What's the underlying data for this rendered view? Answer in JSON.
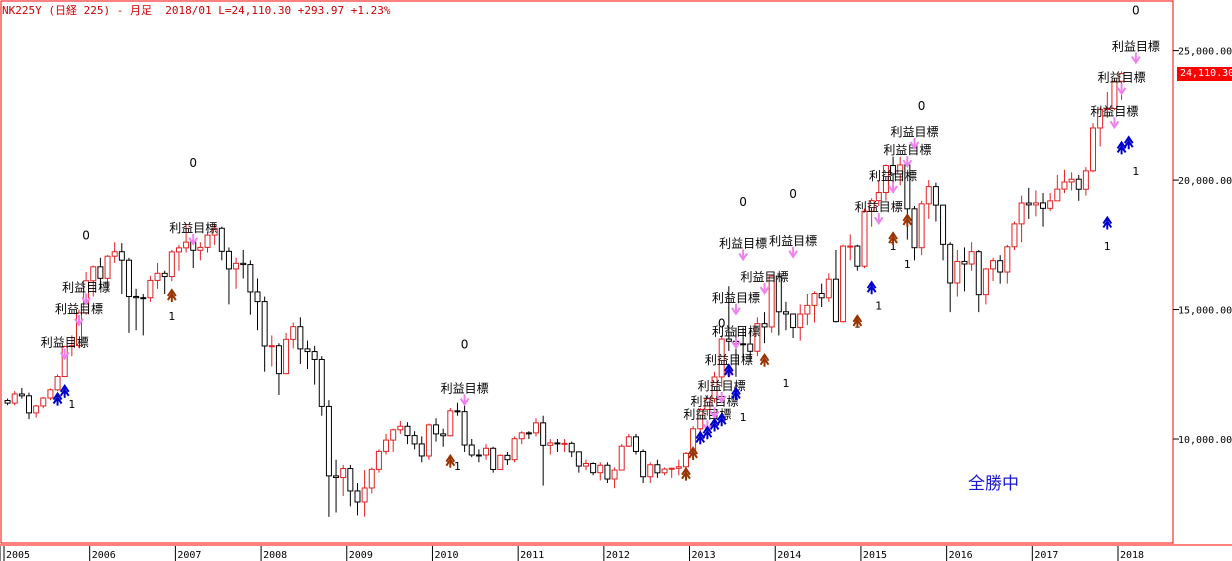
{
  "header": {
    "symbol": "NK225Y",
    "name": "(日経 225)",
    "period": "- 月足",
    "date": "2018/01",
    "last": "L=24,110.30",
    "change": "+293.97",
    "change_pct": "+1.23%"
  },
  "last_price_label": "24,110.30",
  "status_text": "全勝中",
  "colors": {
    "up": "#e02020",
    "down": "#000000",
    "frame": "#ff0000",
    "target": "#ee82ee",
    "buy_arrow": "#0000cc",
    "brown_arrow": "#993300"
  },
  "chart_data": {
    "type": "candlestick",
    "y_axis": {
      "ticks": [
        10000,
        15000,
        20000,
        25000
      ],
      "tick_labels": [
        "10,000.00",
        "15,000.00",
        "20,000.00",
        "25,000.00"
      ],
      "ylim": [
        6100,
        26800
      ]
    },
    "x_axis": {
      "ticks": [
        "2005",
        "2006",
        "2007",
        "2008",
        "2009",
        "2010",
        "2011",
        "2012",
        "2013",
        "2014",
        "2015",
        "2016",
        "2017",
        "2018"
      ]
    },
    "start": "2005-01",
    "candles": [
      [
        11488,
        11387,
        11562,
        11305
      ],
      [
        11387,
        11740,
        11851,
        11300
      ],
      [
        11740,
        11668,
        11975,
        11560
      ],
      [
        11668,
        11009,
        11790,
        10770
      ],
      [
        11009,
        11277,
        11320,
        10825
      ],
      [
        11277,
        11584,
        11625,
        11187
      ],
      [
        11584,
        11900,
        11950,
        11500
      ],
      [
        11900,
        12413,
        12500,
        11850
      ],
      [
        12413,
        13574,
        13600,
        12400
      ],
      [
        13574,
        13607,
        14000,
        13200
      ],
      [
        13607,
        14872,
        15000,
        13500
      ],
      [
        14872,
        16111,
        16450,
        14800
      ],
      [
        16111,
        16650,
        16700,
        15500
      ],
      [
        16650,
        16206,
        17000,
        15800
      ],
      [
        16206,
        17060,
        17100,
        15700
      ],
      [
        17060,
        17233,
        17600,
        16800
      ],
      [
        17233,
        16906,
        17563,
        15600
      ],
      [
        16906,
        15505,
        17000,
        14100
      ],
      [
        15505,
        15458,
        15800,
        14200
      ],
      [
        15458,
        15457,
        15600,
        14000
      ],
      [
        15457,
        16125,
        16300,
        15300
      ],
      [
        16125,
        16399,
        16800,
        15800
      ],
      [
        16399,
        16274,
        16500,
        15600
      ],
      [
        16274,
        17226,
        17300,
        16100
      ],
      [
        17226,
        17383,
        17500,
        16500
      ],
      [
        17383,
        17604,
        18300,
        17200
      ],
      [
        17604,
        17288,
        17700,
        16600
      ],
      [
        17288,
        17400,
        17600,
        16900
      ],
      [
        17400,
        17876,
        18000,
        17200
      ],
      [
        17876,
        18138,
        18300,
        17500
      ],
      [
        18138,
        17248,
        18200,
        16900
      ],
      [
        17248,
        16569,
        17400,
        15200
      ],
      [
        16569,
        16785,
        17000,
        15800
      ],
      [
        16785,
        16737,
        17300,
        16200
      ],
      [
        16737,
        15680,
        16900,
        14800
      ],
      [
        15680,
        15307,
        16200,
        14200
      ],
      [
        15307,
        13592,
        15500,
        12600
      ],
      [
        13592,
        13603,
        14000,
        12800
      ],
      [
        13603,
        12525,
        13700,
        11700
      ],
      [
        12525,
        13850,
        14100,
        12500
      ],
      [
        13850,
        14338,
        14500,
        13500
      ],
      [
        14338,
        13481,
        14700,
        12900
      ],
      [
        13481,
        13377,
        13800,
        12700
      ],
      [
        13377,
        13072,
        13600,
        12100
      ],
      [
        13072,
        11259,
        13200,
        10900
      ],
      [
        11259,
        8576,
        11500,
        6994
      ],
      [
        8576,
        8512,
        9200,
        7162
      ],
      [
        8512,
        8859,
        9000,
        7800
      ],
      [
        8859,
        7994,
        9000,
        7400
      ],
      [
        7994,
        7568,
        8300,
        7050
      ],
      [
        7568,
        8109,
        8800,
        7000
      ],
      [
        8109,
        8828,
        8900,
        7900
      ],
      [
        8828,
        9522,
        9600,
        8700
      ],
      [
        9522,
        9958,
        10200,
        9400
      ],
      [
        9958,
        10356,
        10400,
        9500
      ],
      [
        10356,
        10492,
        10700,
        10200
      ],
      [
        10492,
        10133,
        10650,
        9800
      ],
      [
        10133,
        9810,
        10300,
        9600
      ],
      [
        9810,
        9345,
        10100,
        9100
      ],
      [
        9345,
        10546,
        10600,
        9200
      ],
      [
        10546,
        10198,
        10800,
        9900
      ],
      [
        10198,
        10126,
        10400,
        9700
      ],
      [
        10126,
        11089,
        11200,
        10100
      ],
      [
        11089,
        11057,
        11400,
        10900
      ],
      [
        11057,
        9768,
        11300,
        9500
      ],
      [
        9768,
        9383,
        10000,
        9300
      ],
      [
        9383,
        9382,
        9600,
        9100
      ],
      [
        9382,
        9642,
        9800,
        9200
      ],
      [
        9642,
        8824,
        9700,
        8700
      ],
      [
        8824,
        9369,
        9400,
        8800
      ],
      [
        9369,
        9202,
        9500,
        9000
      ],
      [
        9202,
        10011,
        10100,
        9100
      ],
      [
        10011,
        10238,
        10300,
        9800
      ],
      [
        10238,
        10237,
        10300,
        10000
      ],
      [
        10237,
        10624,
        10800,
        10100
      ],
      [
        10624,
        9755,
        10900,
        8200
      ],
      [
        9755,
        9849,
        10000,
        9400
      ],
      [
        9849,
        9816,
        10000,
        9500
      ],
      [
        9816,
        9833,
        10000,
        9500
      ],
      [
        9833,
        9505,
        9900,
        9300
      ],
      [
        9505,
        8955,
        9500,
        8700
      ],
      [
        8955,
        9054,
        9200,
        8800
      ],
      [
        9054,
        8700,
        9100,
        8600
      ],
      [
        8700,
        8988,
        9100,
        8400
      ],
      [
        8988,
        8455,
        9100,
        8300
      ],
      [
        8455,
        8802,
        8900,
        8100
      ],
      [
        8802,
        9723,
        9800,
        8800
      ],
      [
        9723,
        10084,
        10200,
        9700
      ],
      [
        10084,
        9520,
        10200,
        9400
      ],
      [
        9520,
        8543,
        9600,
        8300
      ],
      [
        8543,
        9007,
        9100,
        8300
      ],
      [
        9007,
        8695,
        9200,
        8500
      ],
      [
        8695,
        8840,
        8900,
        8600
      ],
      [
        8840,
        8870,
        8900,
        8500
      ],
      [
        8870,
        8928,
        9200,
        8600
      ],
      [
        8928,
        9446,
        9500,
        8600
      ],
      [
        9446,
        10395,
        10500,
        9400
      ],
      [
        10395,
        11138,
        11200,
        10200
      ],
      [
        11138,
        11559,
        11700,
        10900
      ],
      [
        11559,
        12397,
        12600,
        11400
      ],
      [
        12397,
        13860,
        14000,
        12000
      ],
      [
        13860,
        13774,
        15900,
        13400
      ],
      [
        13774,
        13677,
        14300,
        12400
      ],
      [
        13677,
        13668,
        14300,
        13100
      ],
      [
        13668,
        13389,
        14200,
        13000
      ],
      [
        13389,
        14455,
        14700,
        13200
      ],
      [
        14455,
        14327,
        14900,
        13700
      ],
      [
        14327,
        16291,
        16300,
        14100
      ],
      [
        16291,
        14914,
        16300,
        14000
      ],
      [
        14914,
        14828,
        15300,
        14200
      ],
      [
        14828,
        14304,
        14800,
        13900
      ],
      [
        14304,
        14827,
        15200,
        13800
      ],
      [
        14827,
        15162,
        15600,
        14400
      ],
      [
        15162,
        15620,
        15700,
        14500
      ],
      [
        15620,
        15454,
        16000,
        15100
      ],
      [
        15454,
        16173,
        16400,
        15300
      ],
      [
        16173,
        14533,
        17300,
        14500
      ],
      [
        14533,
        17451,
        17500,
        14500
      ],
      [
        17451,
        17451,
        17900,
        16900
      ],
      [
        17451,
        16674,
        17500,
        16500
      ],
      [
        16674,
        18798,
        18900,
        16600
      ],
      [
        18798,
        19207,
        19300,
        18200
      ],
      [
        19207,
        19520,
        20000,
        19000
      ],
      [
        19520,
        20563,
        20600,
        19200
      ],
      [
        20563,
        20236,
        20900,
        19900
      ],
      [
        20236,
        20585,
        20900,
        19800
      ],
      [
        20585,
        18890,
        20800,
        17700
      ],
      [
        18890,
        17388,
        19000,
        16900
      ],
      [
        17388,
        19083,
        19200,
        17100
      ],
      [
        19083,
        19747,
        20000,
        18500
      ],
      [
        19747,
        19033,
        19900,
        18400
      ],
      [
        19033,
        17518,
        19000,
        16900
      ],
      [
        17518,
        16026,
        17600,
        14900
      ],
      [
        16026,
        16859,
        17300,
        15500
      ],
      [
        16859,
        16758,
        17400,
        15700
      ],
      [
        16758,
        17234,
        17600,
        16500
      ],
      [
        17234,
        15575,
        17300,
        14900
      ],
      [
        15575,
        16569,
        16600,
        15200
      ],
      [
        16569,
        16887,
        17000,
        16100
      ],
      [
        16887,
        16449,
        17100,
        16000
      ],
      [
        16449,
        17425,
        17500,
        16000
      ],
      [
        17425,
        18308,
        18400,
        17300
      ],
      [
        18308,
        19114,
        19400,
        17600
      ],
      [
        19114,
        19041,
        19700,
        18500
      ],
      [
        19041,
        19119,
        19600,
        18600
      ],
      [
        19119,
        18909,
        19500,
        18200
      ],
      [
        18909,
        19197,
        19500,
        18800
      ],
      [
        19197,
        19650,
        20200,
        19400
      ],
      [
        19650,
        19925,
        20400,
        19500
      ],
      [
        19925,
        20033,
        20300,
        19600
      ],
      [
        20033,
        19646,
        20200,
        19200
      ],
      [
        19646,
        20356,
        20500,
        19400
      ],
      [
        20356,
        22012,
        22200,
        20300
      ],
      [
        22012,
        22725,
        22800,
        21300
      ],
      [
        22725,
        22765,
        23400,
        22400
      ],
      [
        22765,
        23816,
        23900,
        22700
      ],
      [
        23816,
        24110,
        24200,
        23100
      ]
    ],
    "signals": [
      {
        "label": "利益目標",
        "level": 13574,
        "i": 8
      },
      {
        "label": "利益目標",
        "level": 14872,
        "i": 10
      },
      {
        "label": "利益目標",
        "level": 15700,
        "i": 11
      },
      {
        "label": "0",
        "level": 17700,
        "i": 11
      },
      {
        "label": "利益目標",
        "level": 18000,
        "i": 26
      },
      {
        "label": "0",
        "level": 20500,
        "i": 26
      },
      {
        "label": "利益目標",
        "level": 11800,
        "i": 64
      },
      {
        "label": "0",
        "level": 13500,
        "i": 64
      },
      {
        "label": "利益目標",
        "level": 10800,
        "i": 98
      },
      {
        "label": "利益目標",
        "level": 11300,
        "i": 99
      },
      {
        "label": "利益目標",
        "level": 11900,
        "i": 100
      },
      {
        "label": "利益目標",
        "level": 12900,
        "i": 101
      },
      {
        "label": "0",
        "level": 14300,
        "i": 100
      },
      {
        "label": "利益目標",
        "level": 14000,
        "i": 102
      },
      {
        "label": "利益目標",
        "level": 15300,
        "i": 102
      },
      {
        "label": "利益目標",
        "level": 16100,
        "i": 106
      },
      {
        "label": "利益目標",
        "level": 17400,
        "i": 103
      },
      {
        "label": "0",
        "level": 19000,
        "i": 103
      },
      {
        "label": "利益目標",
        "level": 17500,
        "i": 110
      },
      {
        "label": "0",
        "level": 19300,
        "i": 110
      },
      {
        "label": "利益目標",
        "level": 18800,
        "i": 122
      },
      {
        "label": "利益目標",
        "level": 20000,
        "i": 124
      },
      {
        "label": "利益目標",
        "level": 21000,
        "i": 126
      },
      {
        "label": "利益目標",
        "level": 21700,
        "i": 127
      },
      {
        "label": "0",
        "level": 22700,
        "i": 128
      },
      {
        "label": "利益目標",
        "level": 22500,
        "i": 155
      },
      {
        "label": "利益目標",
        "level": 23800,
        "i": 156
      },
      {
        "label": "利益目標",
        "level": 25000,
        "i": 158
      },
      {
        "label": "0",
        "level": 26400,
        "i": 158
      }
    ],
    "numbers": [
      {
        "label": "1",
        "level": 11200,
        "i": 9
      },
      {
        "label": "1",
        "level": 14600,
        "i": 23
      },
      {
        "label": "1",
        "level": 8800,
        "i": 63
      },
      {
        "label": "1",
        "level": 10700,
        "i": 103
      },
      {
        "label": "1",
        "level": 12000,
        "i": 109
      },
      {
        "label": "1",
        "level": 14300,
        "i": 119
      },
      {
        "label": "1",
        "level": 15000,
        "i": 122
      },
      {
        "label": "1",
        "level": 16600,
        "i": 126
      },
      {
        "label": "1",
        "level": 17300,
        "i": 124
      },
      {
        "label": "1",
        "level": 17300,
        "i": 154
      },
      {
        "label": "1",
        "level": 20200,
        "i": 158
      }
    ],
    "blue_arrows": [
      [
        7,
        11600
      ],
      [
        8,
        11900
      ],
      [
        97,
        10100
      ],
      [
        98,
        10300
      ],
      [
        99,
        10600
      ],
      [
        100,
        10800
      ],
      [
        101,
        12700
      ],
      [
        102,
        11800
      ],
      [
        121,
        15900
      ],
      [
        154,
        18400
      ],
      [
        156,
        21300
      ],
      [
        157,
        21500
      ]
    ],
    "brown_arrows": [
      [
        23,
        15600
      ],
      [
        62,
        9200
      ],
      [
        95,
        8700
      ],
      [
        96,
        9500
      ],
      [
        106,
        13100
      ],
      [
        119,
        14600
      ],
      [
        124,
        17800
      ],
      [
        126,
        18500
      ]
    ]
  }
}
